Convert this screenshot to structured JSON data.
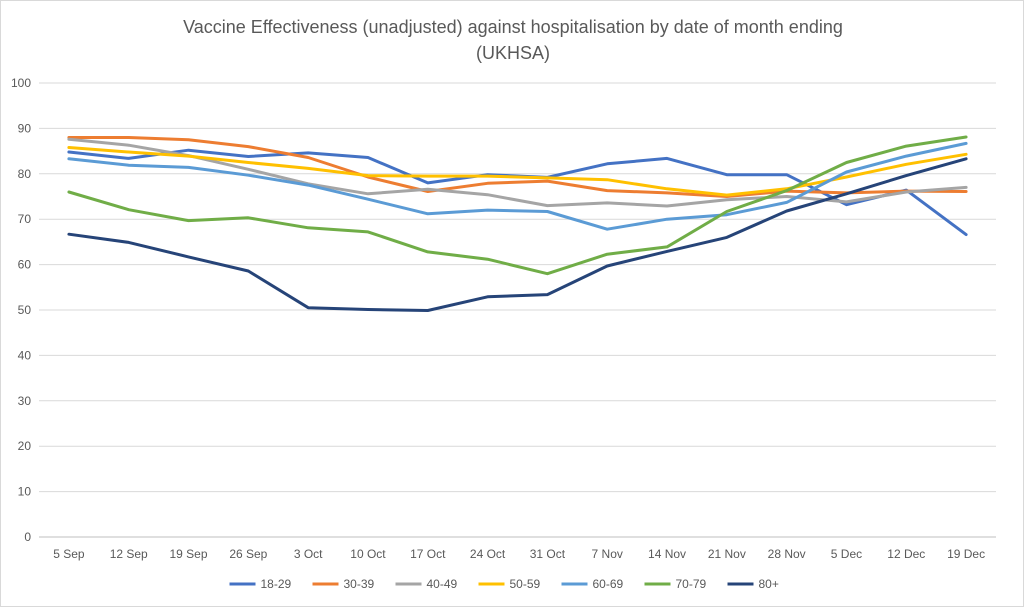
{
  "chart_data": {
    "type": "line",
    "title_lines": [
      "Vaccine Effectiveness (unadjusted) against hospitalisation by date of month ending",
      "(UKHSA)"
    ],
    "xlabel": "",
    "ylabel": "",
    "categories": [
      "5 Sep",
      "12 Sep",
      "19 Sep",
      "26 Sep",
      "3 Oct",
      "10 Oct",
      "17 Oct",
      "24 Oct",
      "31 Oct",
      "7 Nov",
      "14 Nov",
      "21 Nov",
      "28 Nov",
      "5 Dec",
      "12 Dec",
      "19 Dec"
    ],
    "ylim": [
      0,
      100
    ],
    "yticks": [
      0,
      10,
      20,
      30,
      40,
      50,
      60,
      70,
      80,
      90,
      100
    ],
    "grid": "horizontal",
    "legend_position": "bottom",
    "series": [
      {
        "name": "18-29",
        "color": "#4472c4",
        "values": [
          84.8,
          83.4,
          85.2,
          83.8,
          84.6,
          83.6,
          78.0,
          79.8,
          79.2,
          82.2,
          83.4,
          79.8,
          79.8,
          73.2,
          76.4,
          66.6
        ]
      },
      {
        "name": "30-39",
        "color": "#ed7d31",
        "values": [
          88.0,
          88.0,
          87.5,
          86.0,
          83.6,
          79.3,
          76.1,
          77.9,
          78.4,
          76.3,
          75.8,
          75.0,
          76.2,
          75.8,
          76.2,
          76.1
        ]
      },
      {
        "name": "40-49",
        "color": "#a5a5a5",
        "values": [
          87.6,
          86.3,
          84.0,
          81.0,
          77.8,
          75.6,
          76.6,
          75.4,
          73.0,
          73.6,
          72.9,
          74.3,
          75.0,
          73.8,
          76.0,
          77.0
        ]
      },
      {
        "name": "50-59",
        "color": "#ffc000",
        "values": [
          85.8,
          84.8,
          83.9,
          82.5,
          81.2,
          79.6,
          79.5,
          79.5,
          79.1,
          78.7,
          76.7,
          75.3,
          76.7,
          79.3,
          82.1,
          84.3
        ]
      },
      {
        "name": "60-69",
        "color": "#5b9bd5",
        "values": [
          83.3,
          81.9,
          81.4,
          79.7,
          77.5,
          74.4,
          71.2,
          72.0,
          71.7,
          67.8,
          70.0,
          71.0,
          73.7,
          80.4,
          83.9,
          86.7
        ]
      },
      {
        "name": "70-79",
        "color": "#70ad47",
        "values": [
          76.0,
          72.1,
          69.7,
          70.3,
          68.1,
          67.2,
          62.8,
          61.2,
          58.0,
          62.3,
          63.9,
          71.7,
          76.3,
          82.5,
          86.1,
          88.1
        ]
      },
      {
        "name": "80+",
        "color": "#264478",
        "values": [
          66.7,
          64.9,
          61.7,
          58.6,
          50.5,
          50.1,
          49.9,
          52.9,
          53.4,
          59.7,
          62.9,
          66.0,
          71.8,
          75.6,
          79.6,
          83.3
        ]
      }
    ]
  }
}
